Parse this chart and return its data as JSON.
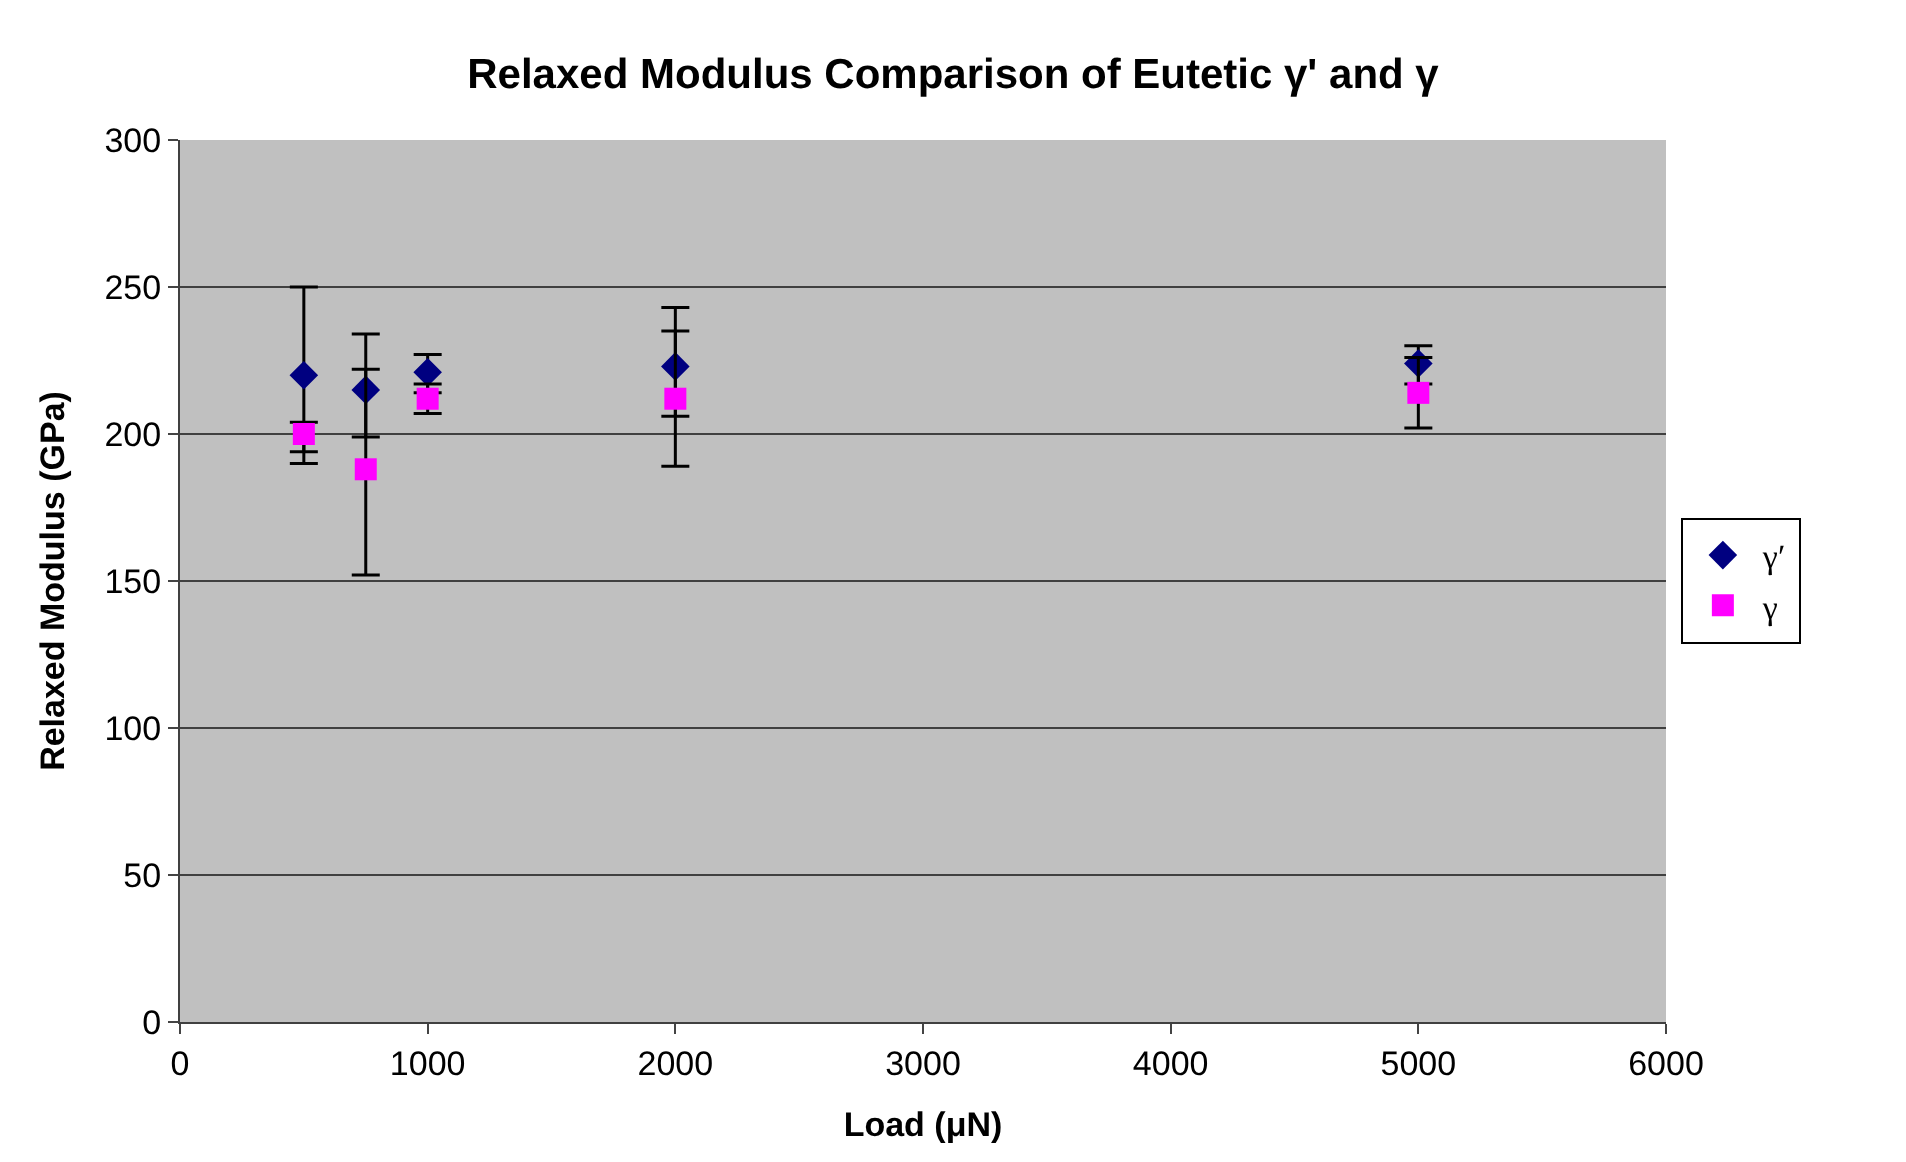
{
  "chart_data": {
    "type": "scatter",
    "title": "Relaxed Modulus Comparison of Eutetic γ' and γ",
    "xlabel": "Load (μN)",
    "ylabel": "Relaxed Modulus (GPa)",
    "xlim": [
      0,
      6000
    ],
    "xticks": [
      0,
      1000,
      2000,
      3000,
      4000,
      5000,
      6000
    ],
    "ylim": [
      0,
      300
    ],
    "yticks": [
      0,
      50,
      100,
      150,
      200,
      250,
      300
    ],
    "grid": "y",
    "legend": "right",
    "series": [
      {
        "name": "γ′",
        "color": "#000080",
        "marker": "diamond",
        "x": [
          500,
          750,
          1000,
          2000,
          5000
        ],
        "values": [
          220,
          215,
          221,
          223,
          224
        ],
        "errors": [
          [
            190,
            250
          ],
          [
            199,
            234
          ],
          [
            214,
            227
          ],
          [
            206,
            243
          ],
          [
            217,
            230
          ]
        ]
      },
      {
        "name": "γ",
        "color": "#ff00ff",
        "marker": "square",
        "x": [
          500,
          750,
          1000,
          2000,
          5000
        ],
        "values": [
          200,
          188,
          212,
          212,
          214
        ],
        "errors": [
          [
            194,
            204
          ],
          [
            152,
            222
          ],
          [
            207,
            217
          ],
          [
            189,
            235
          ],
          [
            202,
            226
          ]
        ]
      }
    ]
  }
}
